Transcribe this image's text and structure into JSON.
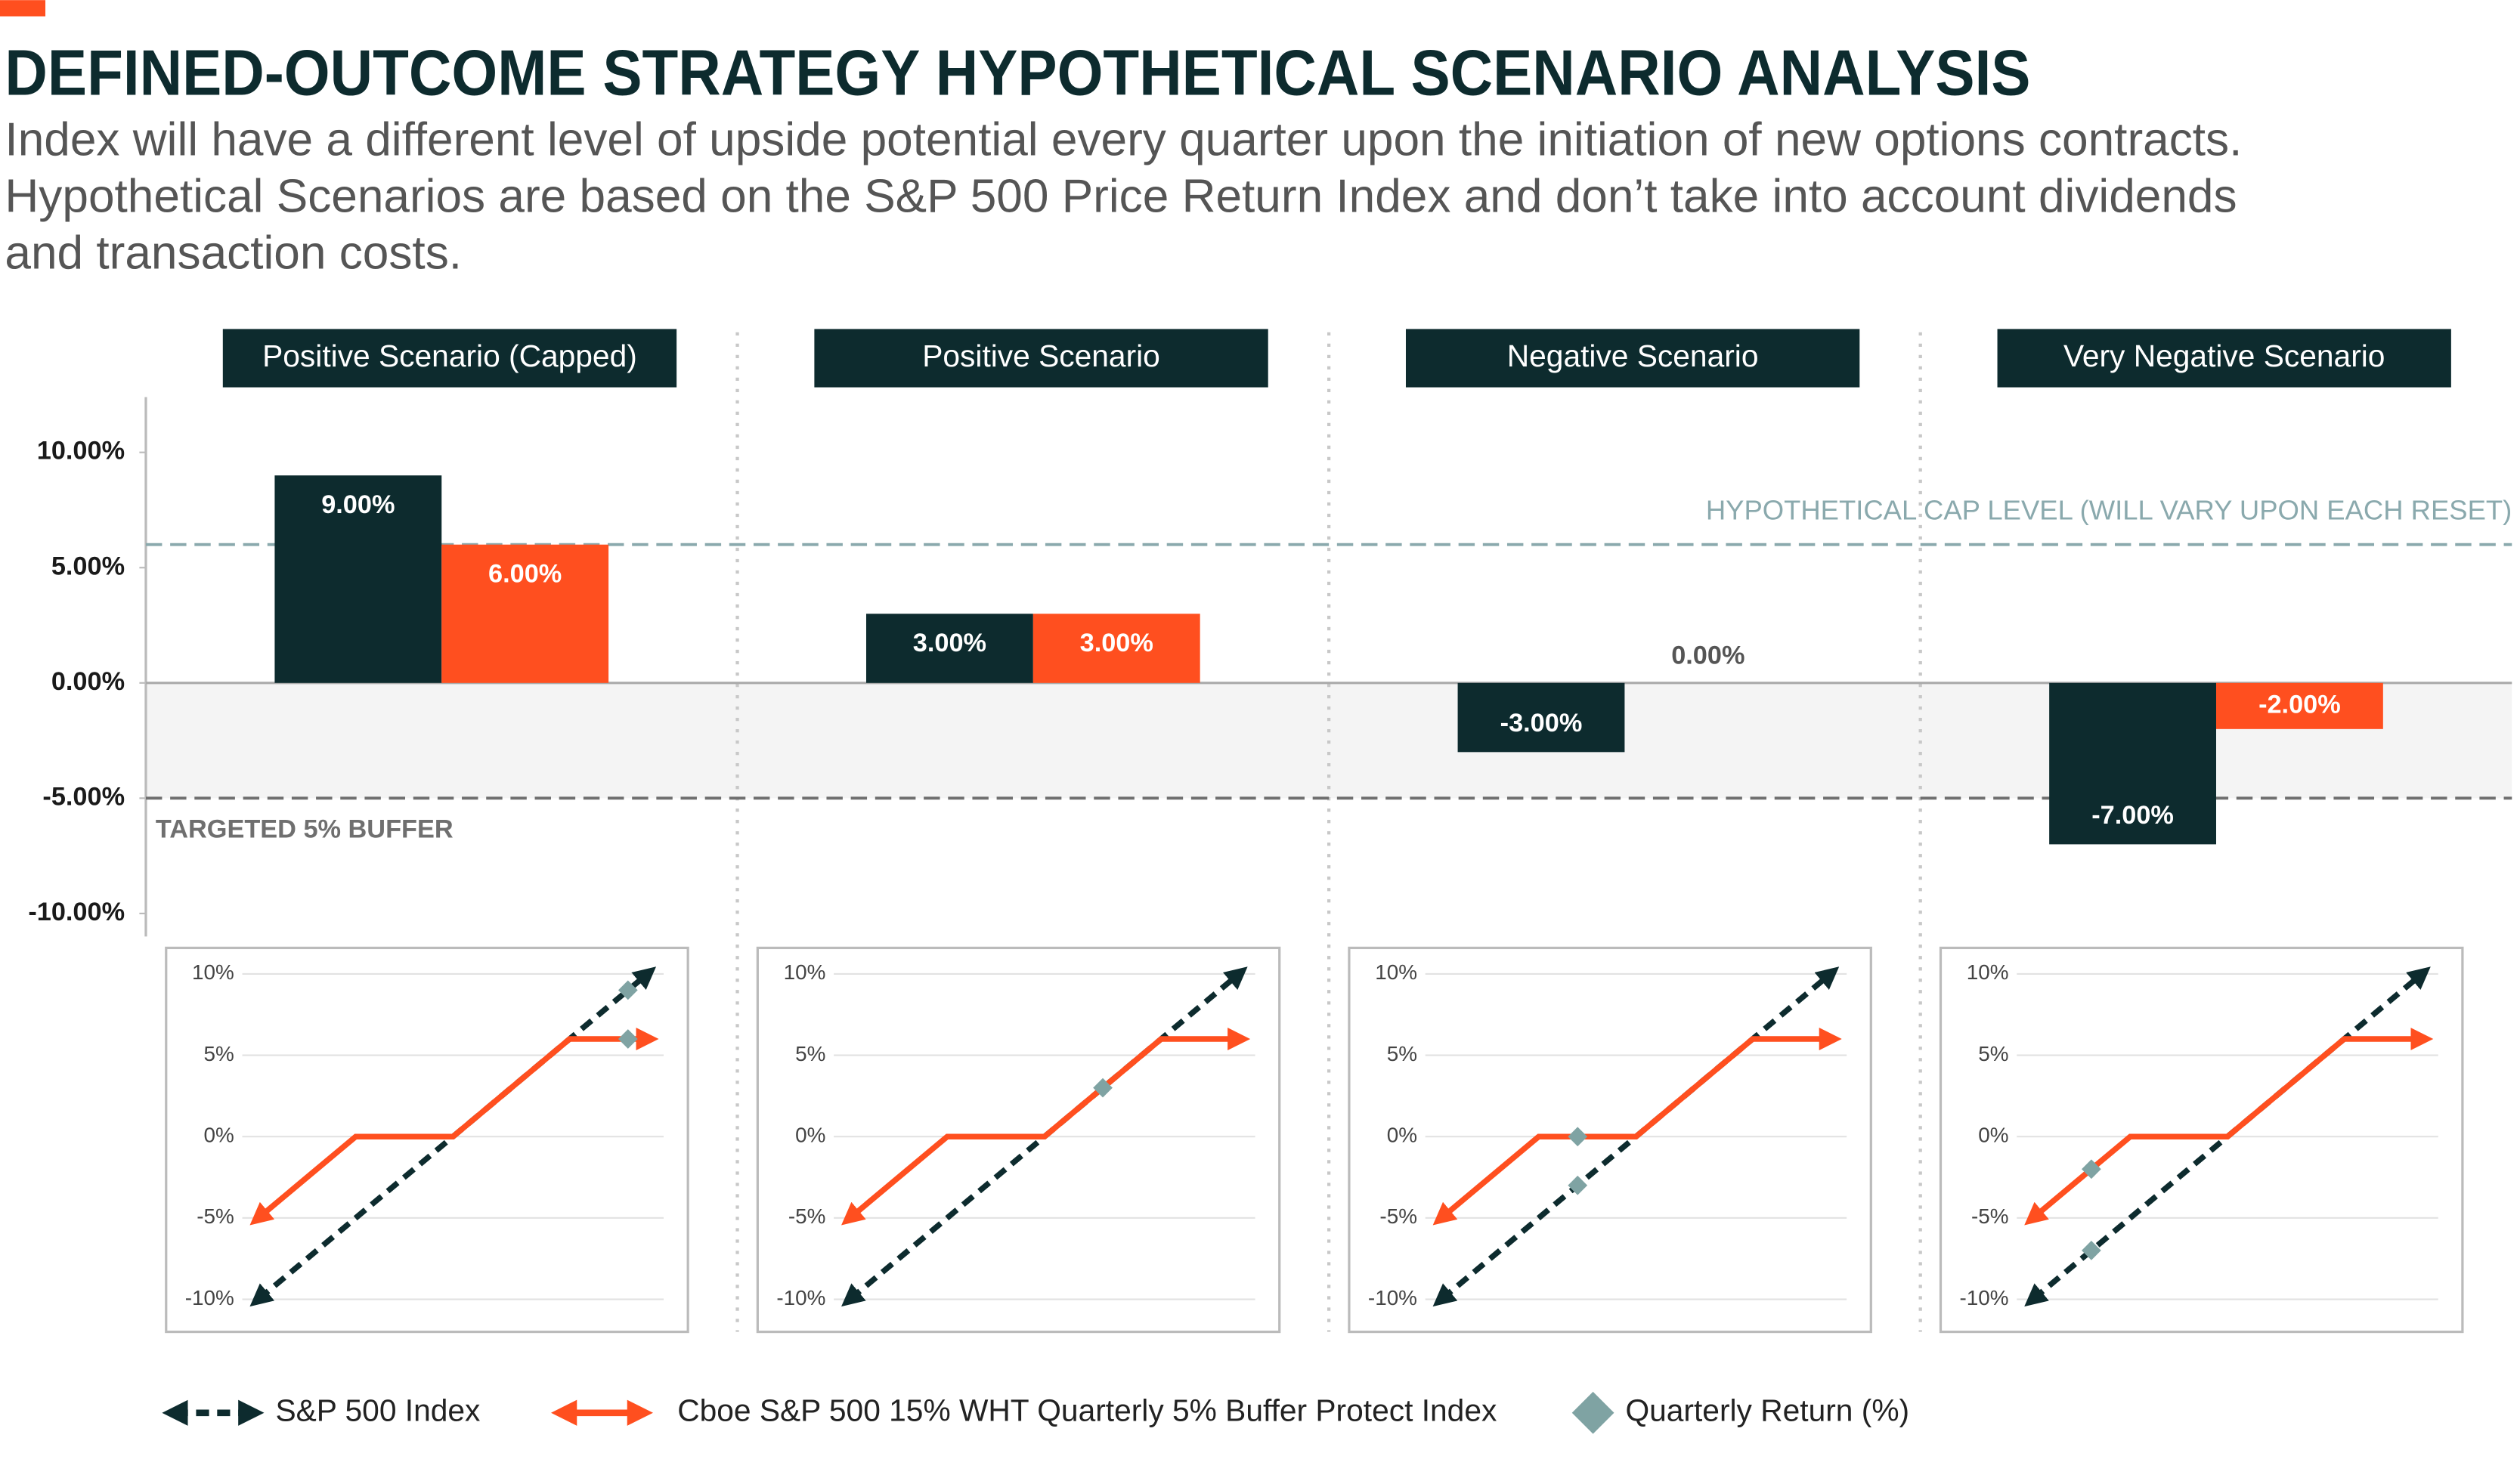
{
  "chart_data": [
    {
      "type": "bar",
      "title": "DEFINED-OUTCOME STRATEGY HYPOTHETICAL SCENARIO ANALYSIS",
      "subtitle": [
        "Index will have a different level of upside potential every quarter upon the initiation of new options contracts.",
        "Hypothetical Scenarios are based on the S&P 500 Price Return Index and don’t take into account dividends",
        "and transaction costs."
      ],
      "categories": [
        "Positive Scenario (Capped)",
        "Positive Scenario",
        "Negative Scenario",
        "Very Negative Scenario"
      ],
      "series": [
        {
          "name": "S&P 500 Index",
          "color": "#0d2b2e",
          "values": [
            9,
            3,
            -3,
            -7
          ],
          "value_labels": [
            "9.00%",
            "3.00%",
            "-3.00%",
            "-7.00%"
          ]
        },
        {
          "name": "Cboe S&P 500 15% WHT Quarterly 5% Buffer Protect Index",
          "color": "#ff4f1f",
          "values": [
            6,
            3,
            0,
            -2
          ],
          "value_labels": [
            "6.00%",
            "3.00%",
            "0.00%",
            "-2.00%"
          ]
        }
      ],
      "ylim": [
        -11,
        12.4
      ],
      "yticks": [
        {
          "value": 10,
          "label": "10.00%"
        },
        {
          "value": 5,
          "label": "5.00%"
        },
        {
          "value": 0,
          "label": "0.00%"
        },
        {
          "value": -5,
          "label": "-5.00%"
        },
        {
          "value": -10,
          "label": "-10.00%"
        }
      ],
      "reference_lines": [
        {
          "value": 6,
          "label": "HYPOTHETICAL CAP LEVEL (WILL VARY UPON EACH RESET)",
          "color": "#8aa9ad"
        },
        {
          "value": -5,
          "label": "TARGETED 5% BUFFER",
          "color": "#6f6f6f"
        }
      ]
    },
    {
      "type": "line",
      "xlim": [
        -11,
        11
      ],
      "ylim": [
        -12,
        11.6
      ],
      "grid": true,
      "yticks": [
        {
          "value": 10,
          "label": "10%"
        },
        {
          "value": 5,
          "label": "5%"
        },
        {
          "value": 0,
          "label": "0%"
        },
        {
          "value": -5,
          "label": "-5%"
        },
        {
          "value": -10,
          "label": "-10%"
        }
      ],
      "series": [
        {
          "color": "#0d2b2e",
          "style": "dashed",
          "x": [
            -10,
            10
          ],
          "values": [
            -10,
            10
          ]
        },
        {
          "color": "#ff4f1f",
          "style": "solid",
          "x": [
            -10,
            -5,
            0,
            6,
            10
          ],
          "values": [
            -5,
            0,
            0,
            6,
            6
          ]
        },
        {
          "name": "Quarterly Return (%)",
          "color": "#7fa3a3",
          "marker": "diamond",
          "x": [
            9,
            9
          ],
          "values": [
            9,
            6
          ]
        }
      ]
    },
    {
      "type": "line",
      "xlim": [
        -11,
        11
      ],
      "ylim": [
        -12,
        11.6
      ],
      "grid": true,
      "yticks": [
        {
          "value": 10,
          "label": "10%"
        },
        {
          "value": 5,
          "label": "5%"
        },
        {
          "value": 0,
          "label": "0%"
        },
        {
          "value": -5,
          "label": "-5%"
        },
        {
          "value": -10,
          "label": "-10%"
        }
      ],
      "series": [
        {
          "color": "#0d2b2e",
          "style": "dashed",
          "x": [
            -10,
            10
          ],
          "values": [
            -10,
            10
          ]
        },
        {
          "color": "#ff4f1f",
          "style": "solid",
          "x": [
            -10,
            -5,
            0,
            6,
            10
          ],
          "values": [
            -5,
            0,
            0,
            6,
            6
          ]
        },
        {
          "color": "#7fa3a3",
          "marker": "diamond",
          "x": [
            3
          ],
          "values": [
            3
          ]
        }
      ]
    },
    {
      "type": "line",
      "xlim": [
        -11,
        11
      ],
      "ylim": [
        -12,
        11.6
      ],
      "grid": true,
      "yticks": [
        {
          "value": 10,
          "label": "10%"
        },
        {
          "value": 5,
          "label": "5%"
        },
        {
          "value": 0,
          "label": "0%"
        },
        {
          "value": -5,
          "label": "-5%"
        },
        {
          "value": -10,
          "label": "-10%"
        }
      ],
      "series": [
        {
          "color": "#0d2b2e",
          "style": "dashed",
          "x": [
            -10,
            10
          ],
          "values": [
            -10,
            10
          ]
        },
        {
          "color": "#ff4f1f",
          "style": "solid",
          "x": [
            -10,
            -5,
            0,
            6,
            10
          ],
          "values": [
            -5,
            0,
            0,
            6,
            6
          ]
        },
        {
          "color": "#7fa3a3",
          "marker": "diamond",
          "x": [
            -3,
            -3
          ],
          "values": [
            -3,
            0
          ]
        }
      ]
    },
    {
      "type": "line",
      "xlim": [
        -11,
        11
      ],
      "ylim": [
        -12,
        11.6
      ],
      "grid": true,
      "yticks": [
        {
          "value": 10,
          "label": "10%"
        },
        {
          "value": 5,
          "label": "5%"
        },
        {
          "value": 0,
          "label": "0%"
        },
        {
          "value": -5,
          "label": "-5%"
        },
        {
          "value": -10,
          "label": "-10%"
        }
      ],
      "series": [
        {
          "color": "#0d2b2e",
          "style": "dashed",
          "x": [
            -10,
            10
          ],
          "values": [
            -10,
            10
          ]
        },
        {
          "color": "#ff4f1f",
          "style": "solid",
          "x": [
            -10,
            -5,
            0,
            6,
            10
          ],
          "values": [
            -5,
            0,
            0,
            6,
            6
          ]
        },
        {
          "color": "#7fa3a3",
          "marker": "diamond",
          "x": [
            -7,
            -7
          ],
          "values": [
            -7,
            -2
          ]
        }
      ]
    }
  ]
}
